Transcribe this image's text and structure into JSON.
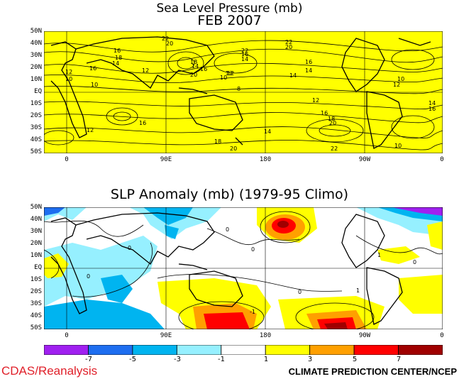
{
  "top_panel": {
    "title": "Sea Level Pressure (mb)",
    "subtitle": "FEB 2007",
    "fill_color": "#ffff00",
    "contour_labels": [
      "22",
      "20",
      "16",
      "18",
      "14",
      "16",
      "12",
      "10",
      "10",
      "12",
      "14",
      "16",
      "18",
      "20",
      "22",
      "22",
      "16",
      "20",
      "14",
      "10",
      "12",
      "8",
      "12",
      "14",
      "16",
      "18",
      "12",
      "16",
      "14",
      "10",
      "12",
      "16",
      "20",
      "22",
      "12",
      "16",
      "14",
      "20",
      "10",
      "18",
      "14"
    ]
  },
  "bottom_panel": {
    "title": "SLP Anomaly (mb) (1979-95 Climo)",
    "contour_labels": [
      "0",
      "0",
      "-1",
      "0",
      "0",
      "1",
      "0",
      "0",
      "1"
    ]
  },
  "map_axes": {
    "lat_labels": [
      "50N",
      "40N",
      "30N",
      "20N",
      "10N",
      "EQ",
      "10S",
      "20S",
      "30S",
      "40S",
      "50S"
    ],
    "lon_labels": [
      "0",
      "90E",
      "180",
      "90W",
      "0"
    ]
  },
  "colorbar": {
    "colors": [
      "#a020f0",
      "#1e6ef0",
      "#00b4f0",
      "#96f0ff",
      "#ffffff",
      "#ffff00",
      "#ffa000",
      "#ff0000",
      "#a00000"
    ],
    "labels": [
      "-7",
      "-5",
      "-3",
      "-1",
      "1",
      "3",
      "5",
      "7"
    ]
  },
  "credits": {
    "left": "CDAS/Reanalysis",
    "right": "CLIMATE PREDICTION CENTER/NCEP"
  }
}
